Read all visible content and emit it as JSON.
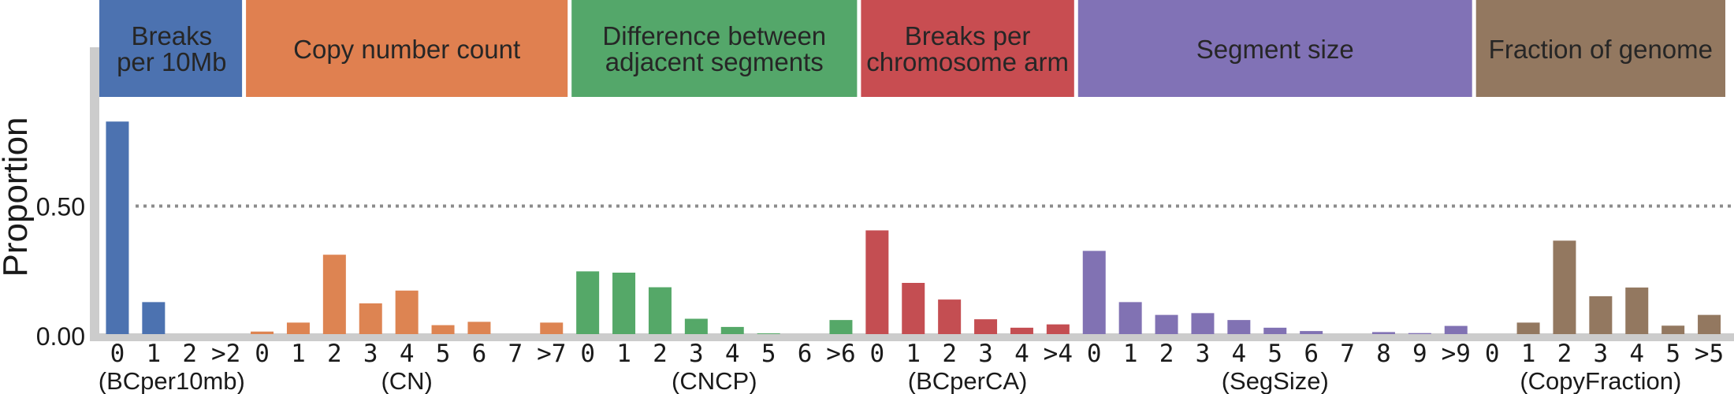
{
  "chart_data": {
    "type": "bar",
    "ylabel": "Proportion",
    "ylim": [
      0,
      0.9
    ],
    "yticks": [
      "0.00",
      "0.50"
    ],
    "reference_line": 0.5,
    "groups": [
      {
        "title": [
          "Breaks",
          "per 10Mb"
        ],
        "label": "(BCper10mb)",
        "color": "#4c72b0",
        "header_color": "#4c72b0",
        "categories": [
          "0",
          "1",
          "2",
          ">2"
        ],
        "values": [
          0.83,
          0.125,
          0.0,
          0.0
        ]
      },
      {
        "title": [
          "Copy number count"
        ],
        "label": "(CN)",
        "color": "#dd8452",
        "header_color": "#e08050",
        "categories": [
          "0",
          "1",
          "2",
          "3",
          "4",
          "5",
          "6",
          "7",
          ">7"
        ],
        "values": [
          0.01,
          0.045,
          0.31,
          0.12,
          0.17,
          0.035,
          0.048,
          0.0,
          0.045
        ]
      },
      {
        "title": [
          "Difference between",
          "adjacent segments"
        ],
        "label": "(CNCP)",
        "color": "#55a868",
        "header_color": "#54a76a",
        "categories": [
          "0",
          "1",
          "2",
          "3",
          "4",
          "5",
          "6",
          ">6"
        ],
        "values": [
          0.245,
          0.24,
          0.183,
          0.06,
          0.028,
          0.003,
          0.0,
          0.055
        ]
      },
      {
        "title": [
          "Breaks per",
          "chromosome arm"
        ],
        "label": "(BCperCA)",
        "color": "#c44e52",
        "header_color": "#c84d51",
        "categories": [
          "0",
          "1",
          "2",
          "3",
          "4",
          ">4"
        ],
        "values": [
          0.405,
          0.2,
          0.135,
          0.058,
          0.025,
          0.038
        ]
      },
      {
        "title": [
          "Segment size"
        ],
        "label": "(SegSize)",
        "color": "#8172b3",
        "header_color": "#8172b6",
        "categories": [
          "0",
          "1",
          "2",
          "3",
          "4",
          "5",
          "6",
          "7",
          "8",
          "9",
          ">9"
        ],
        "values": [
          0.325,
          0.125,
          0.075,
          0.082,
          0.055,
          0.025,
          0.012,
          0.0,
          0.008,
          0.004,
          0.032
        ]
      },
      {
        "title": [
          "Fraction of genome"
        ],
        "label": "(CopyFraction)",
        "color": "#937860",
        "header_color": "#937860",
        "categories": [
          "0",
          "1",
          "2",
          "3",
          "4",
          "5",
          ">5"
        ],
        "values": [
          0.0,
          0.045,
          0.365,
          0.148,
          0.182,
          0.033,
          0.075
        ]
      }
    ]
  }
}
